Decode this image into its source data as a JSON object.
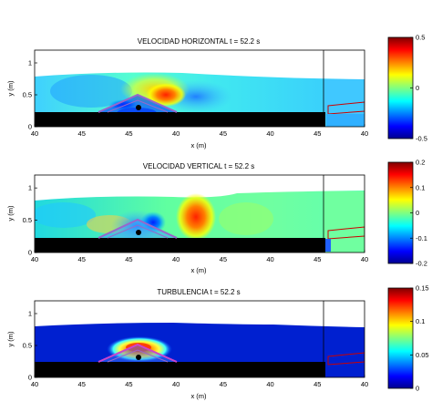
{
  "chart_data": [
    {
      "type": "heatmap",
      "title": "VELOCIDAD HORIZONTAL  t = 52.2 s",
      "xlabel": "x (m)",
      "ylabel": "y (m)",
      "x_ticks": [
        "40",
        "45",
        "45",
        "40",
        "45",
        "40",
        "45",
        "40"
      ],
      "y_ticks": [
        "0",
        "0.5",
        "1"
      ],
      "ylim": [
        0,
        1.2
      ],
      "colorbar": {
        "ticks": [
          "0.5",
          "0",
          "-0.5"
        ],
        "range": [
          -0.5,
          0.5
        ]
      },
      "colormap": "jet"
    },
    {
      "type": "heatmap",
      "title": "VELOCIDAD VERTICAL  t = 52.2 s",
      "xlabel": "x (m)",
      "ylabel": "y (m)",
      "x_ticks": [
        "40",
        "45",
        "45",
        "40",
        "45",
        "40",
        "45",
        "40"
      ],
      "y_ticks": [
        "0",
        "0.5",
        "1"
      ],
      "ylim": [
        0,
        1.2
      ],
      "colorbar": {
        "ticks": [
          "0.2",
          "0.1",
          "0",
          "-0.1",
          "-0.2"
        ],
        "range": [
          -0.2,
          0.2
        ]
      },
      "colormap": "jet"
    },
    {
      "type": "heatmap",
      "title": "TURBULENCIA  t = 52.2 s",
      "xlabel": "x (m)",
      "ylabel": "y (m)",
      "x_ticks": [
        "40",
        "45",
        "45",
        "40",
        "45",
        "40",
        "45",
        "40"
      ],
      "y_ticks": [
        "0",
        "0.5",
        "1"
      ],
      "ylim": [
        0,
        1.2
      ],
      "colorbar": {
        "ticks": [
          "0.15",
          "0.1",
          "0.05",
          "0"
        ],
        "range": [
          0,
          0.15
        ]
      },
      "colormap": "jet"
    }
  ],
  "colors": {
    "jet": [
      "#00008f",
      "#0000ff",
      "#0080ff",
      "#00ffff",
      "#80ff80",
      "#ffff00",
      "#ff8000",
      "#ff0000",
      "#800000"
    ],
    "bed": "#000000",
    "structure": "#9966cc",
    "outline": "#cc0000"
  }
}
